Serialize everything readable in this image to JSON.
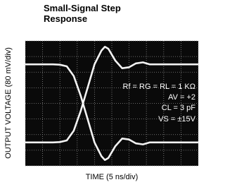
{
  "chart_data": {
    "type": "line",
    "title": "Small-Signal Step Response",
    "xlabel": "TIME (5 ns/div)",
    "ylabel": "OUTPUT VOLTAGE (80 mV/div)",
    "annotations": [
      "Rf = RG = RL = 1 KΩ",
      "AV = +2",
      "CL = 3 pF",
      "VS = ±15V"
    ],
    "x": [
      0,
      4,
      8,
      10,
      12,
      14,
      16,
      18,
      20,
      22,
      23,
      24,
      26,
      28,
      30,
      32,
      34,
      36,
      40,
      45,
      50
    ],
    "series": [
      {
        "color": "#ffffff",
        "values": [
          -200,
          -200,
          -200,
          -198,
          -190,
          -140,
          -40,
          80,
          200,
          270,
          290,
          280,
          220,
          180,
          185,
          205,
          210,
          200,
          200,
          200,
          200
        ]
      },
      {
        "color": "#ffffff",
        "values": [
          200,
          200,
          200,
          198,
          190,
          140,
          40,
          -80,
          -200,
          -270,
          -290,
          -280,
          -220,
          -180,
          -185,
          -205,
          -210,
          -200,
          -200,
          -200,
          -200
        ]
      }
    ],
    "xlim": [
      0,
      50
    ],
    "ylim": [
      -320,
      320
    ],
    "xticks": [
      0,
      5,
      10,
      15,
      20,
      25,
      30,
      35,
      40,
      45,
      50
    ],
    "yticks": [
      -320,
      -240,
      -160,
      -80,
      0,
      80,
      160,
      240,
      320
    ],
    "grid": true
  }
}
